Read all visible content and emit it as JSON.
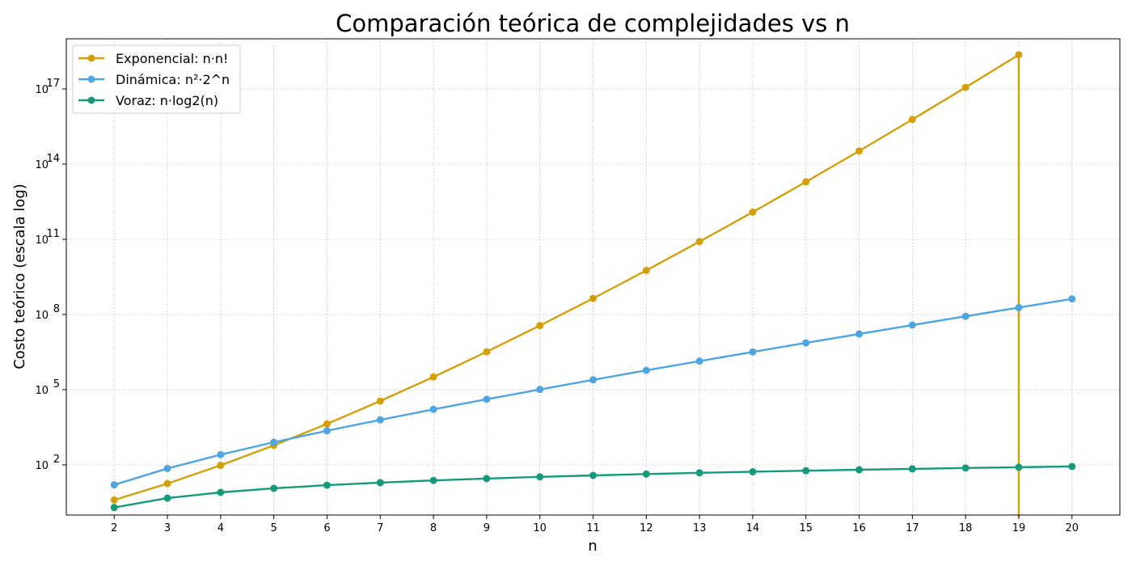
{
  "chart_data": {
    "type": "line",
    "title": "Comparación teórica de complejidades vs n",
    "xlabel": "n",
    "ylabel": "Costo teórico (escala log)",
    "yscale": "log",
    "grid": true,
    "legend_position": "top-left",
    "xlim": [
      1.1,
      20.9
    ],
    "ylim_log10": [
      0.0,
      19.0
    ],
    "x_ticks": [
      2,
      3,
      4,
      5,
      6,
      7,
      8,
      9,
      10,
      11,
      12,
      13,
      14,
      15,
      16,
      17,
      18,
      19,
      20
    ],
    "y_ticks": [
      {
        "base": "10",
        "exp": "2",
        "log10": 2
      },
      {
        "base": "10",
        "exp": "5",
        "log10": 5
      },
      {
        "base": "10",
        "exp": "8",
        "log10": 8
      },
      {
        "base": "10",
        "exp": "11",
        "log10": 11
      },
      {
        "base": "10",
        "exp": "14",
        "log10": 14
      },
      {
        "base": "10",
        "exp": "17",
        "log10": 17
      }
    ],
    "series": [
      {
        "name": "Exponencial: n·n!",
        "color": "#D4A00A",
        "x": [
          2,
          3,
          4,
          5,
          6,
          7,
          8,
          9,
          10,
          11,
          12,
          13,
          14,
          15,
          16,
          17,
          18,
          19
        ],
        "values": [
          4,
          18,
          96,
          600,
          4320,
          35280,
          322560,
          3265920,
          36288000,
          439084800,
          5748019200,
          80951270400,
          1220496076800,
          19615115520000,
          334764638208000,
          6046686277632000,
          115242726703104000,
          2311256907767808000
        ],
        "drop_at_x": 19
      },
      {
        "name": "Dinámica: n²·2^n",
        "color": "#4EA5DF",
        "x": [
          2,
          3,
          4,
          5,
          6,
          7,
          8,
          9,
          10,
          11,
          12,
          13,
          14,
          15,
          16,
          17,
          18,
          19,
          20
        ],
        "values": [
          16,
          72,
          256,
          800,
          2304,
          6272,
          16384,
          41472,
          102400,
          247808,
          589824,
          1384448,
          3211264,
          7372800,
          16777216,
          37879808,
          84934656,
          189267968,
          419430400
        ]
      },
      {
        "name": "Voraz: n·log2(n)",
        "color": "#159A7B",
        "x": [
          2,
          3,
          4,
          5,
          6,
          7,
          8,
          9,
          10,
          11,
          12,
          13,
          14,
          15,
          16,
          17,
          18,
          19,
          20
        ],
        "values": [
          2,
          4.75,
          8,
          11.61,
          15.51,
          19.65,
          24,
          28.53,
          33.22,
          38.05,
          43.02,
          48.11,
          53.3,
          58.6,
          64,
          69.49,
          75.06,
          80.71,
          86.44
        ]
      }
    ]
  }
}
